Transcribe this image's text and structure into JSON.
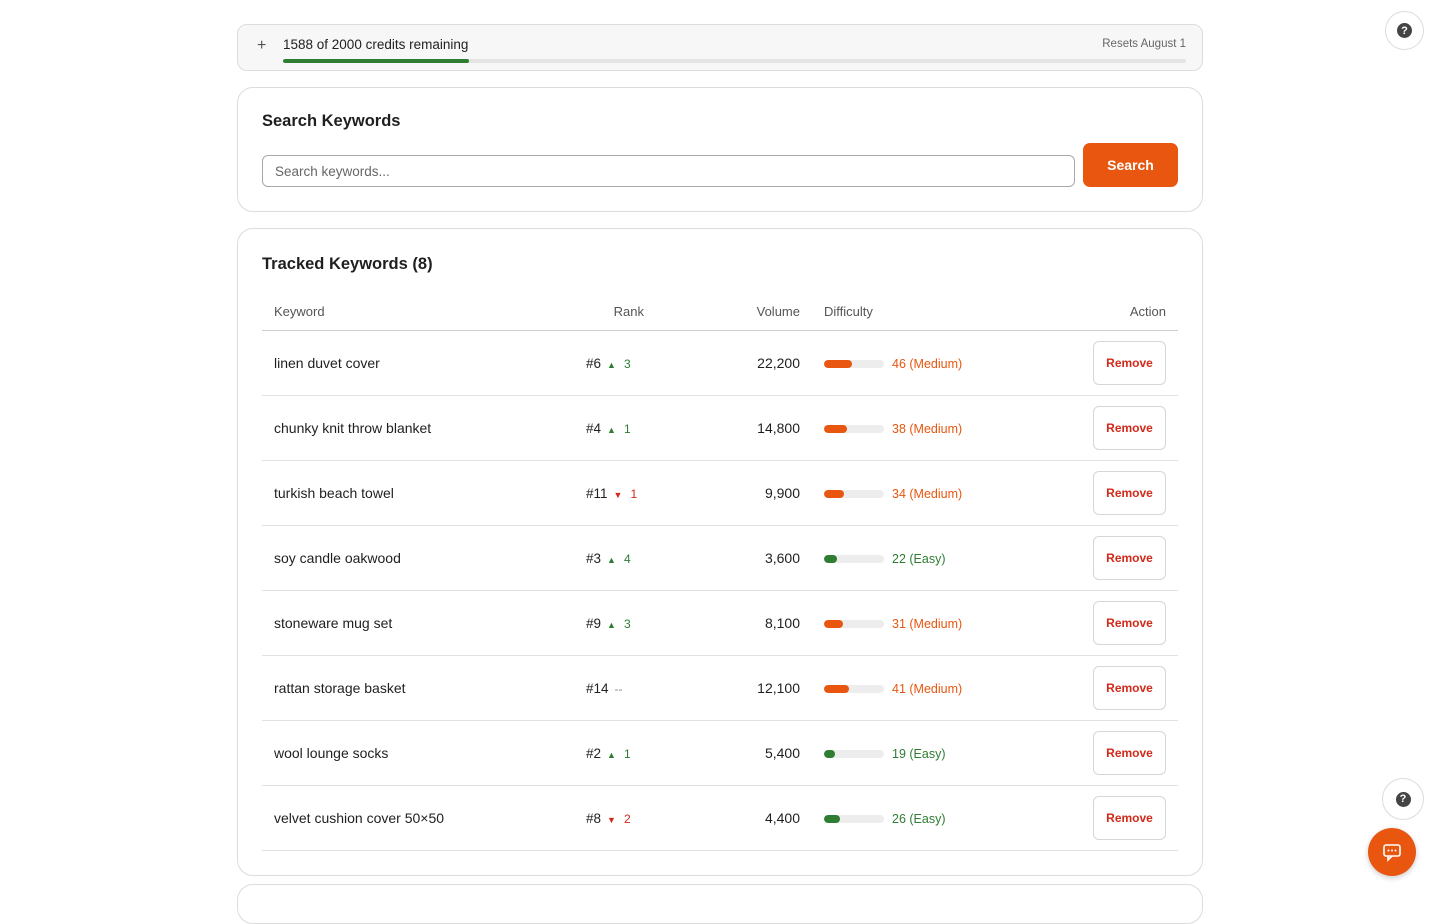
{
  "credits": {
    "text": "1588 of 2000 credits remaining",
    "reset": "Resets August 1",
    "used_fraction": 0.206
  },
  "search": {
    "title": "Search Keywords",
    "placeholder": "Search keywords...",
    "button_label": "Search"
  },
  "tracked": {
    "title": "Tracked Keywords (8)",
    "columns": {
      "keyword": "Keyword",
      "rank": "Rank",
      "volume": "Volume",
      "difficulty": "Difficulty",
      "action": "Action"
    },
    "remove_label": "Remove",
    "rows": [
      {
        "keyword": "linen duvet cover",
        "rank": "#6",
        "dir": "up",
        "change": "3",
        "volume": "22,200",
        "difficulty": 46,
        "diff_label": "46 (Medium)",
        "level": "medium"
      },
      {
        "keyword": "chunky knit throw blanket",
        "rank": "#4",
        "dir": "up",
        "change": "1",
        "volume": "14,800",
        "difficulty": 38,
        "diff_label": "38 (Medium)",
        "level": "medium"
      },
      {
        "keyword": "turkish beach towel",
        "rank": "#11",
        "dir": "down",
        "change": "1",
        "volume": "9,900",
        "difficulty": 34,
        "diff_label": "34 (Medium)",
        "level": "medium"
      },
      {
        "keyword": "soy candle oakwood",
        "rank": "#3",
        "dir": "up",
        "change": "4",
        "volume": "3,600",
        "difficulty": 22,
        "diff_label": "22 (Easy)",
        "level": "easy"
      },
      {
        "keyword": "stoneware mug set",
        "rank": "#9",
        "dir": "up",
        "change": "3",
        "volume": "8,100",
        "difficulty": 31,
        "diff_label": "31 (Medium)",
        "level": "medium"
      },
      {
        "keyword": "rattan storage basket",
        "rank": "#14",
        "dir": "none",
        "change": "--",
        "volume": "12,100",
        "difficulty": 41,
        "diff_label": "41 (Medium)",
        "level": "medium"
      },
      {
        "keyword": "wool lounge socks",
        "rank": "#2",
        "dir": "up",
        "change": "1",
        "volume": "5,400",
        "difficulty": 19,
        "diff_label": "19 (Easy)",
        "level": "easy"
      },
      {
        "keyword": "velvet cushion cover 50×50",
        "rank": "#8",
        "dir": "down",
        "change": "2",
        "volume": "4,400",
        "difficulty": 26,
        "diff_label": "26 (Easy)",
        "level": "easy"
      }
    ]
  },
  "colors": {
    "accent": "#e8560f",
    "easy": "#2e7d32",
    "medium": "#e8560f",
    "up": "#2e7d32",
    "down": "#d12a1a",
    "credit_fill": "#2e7d32"
  },
  "icons": {
    "credits": "plus-icon",
    "help": "help-icon",
    "chat": "chat-icon"
  }
}
